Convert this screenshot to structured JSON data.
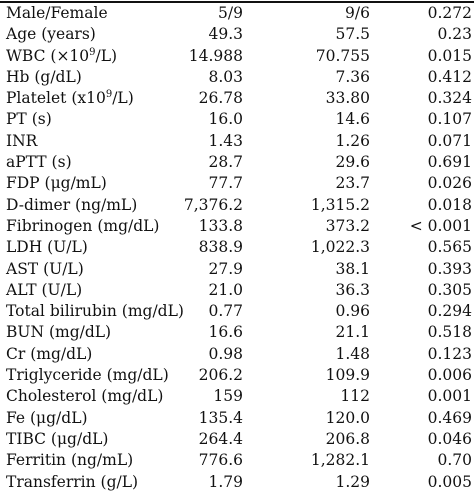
{
  "rows": [
    {
      "label": "Male/Female",
      "a": "5/9",
      "b": "9/6",
      "p": "0.272"
    },
    {
      "label": "Age (years)",
      "a": "49.3",
      "b": "57.5",
      "p": "0.23"
    },
    {
      "label_pre": "WBC (×10",
      "label_sup": "9",
      "label_post": "/L)",
      "a": "14.988",
      "b": "70.755",
      "p": "0.015"
    },
    {
      "label": "Hb (g/dL)",
      "a": "8.03",
      "b": "7.36",
      "p": "0.412"
    },
    {
      "label_pre": "Platelet (x10",
      "label_sup": "9",
      "label_post": "/L)",
      "a": "26.78",
      "b": "33.80",
      "p": "0.324"
    },
    {
      "label": "PT (s)",
      "a": "16.0",
      "b": "14.6",
      "p": "0.107"
    },
    {
      "label": "INR",
      "a": "1.43",
      "b": "1.26",
      "p": "0.071"
    },
    {
      "label": "aPTT (s)",
      "a": "28.7",
      "b": "29.6",
      "p": "0.691"
    },
    {
      "label": "FDP (μg/mL)",
      "a": "77.7",
      "b": "23.7",
      "p": "0.026"
    },
    {
      "label": "D-dimer (ng/mL)",
      "a": "7,376.2",
      "b": "1,315.2",
      "p": "0.018"
    },
    {
      "label": "Fibrinogen (mg/dL)",
      "a": "133.8",
      "b": "373.2",
      "p": "< 0.001"
    },
    {
      "label": "LDH (U/L)",
      "a": "838.9",
      "b": "1,022.3",
      "p": "0.565"
    },
    {
      "label": "AST (U/L)",
      "a": "27.9",
      "b": "38.1",
      "p": "0.393"
    },
    {
      "label": "ALT (U/L)",
      "a": "21.0",
      "b": "36.3",
      "p": "0.305"
    },
    {
      "label": "Total bilirubin (mg/dL)",
      "a": "0.77",
      "b": "0.96",
      "p": "0.294"
    },
    {
      "label": "BUN (mg/dL)",
      "a": "16.6",
      "b": "21.1",
      "p": "0.518"
    },
    {
      "label": "Cr (mg/dL)",
      "a": "0.98",
      "b": "1.48",
      "p": "0.123"
    },
    {
      "label": "Triglyceride (mg/dL)",
      "a": "206.2",
      "b": "109.9",
      "p": "0.006"
    },
    {
      "label": "Cholesterol (mg/dL)",
      "a": "159",
      "b": "112",
      "p": "0.001"
    },
    {
      "label": "Fe (μg/dL)",
      "a": "135.4",
      "b": "120.0",
      "p": "0.469"
    },
    {
      "label": "TIBC (μg/dL)",
      "a": "264.4",
      "b": "206.8",
      "p": "0.046"
    },
    {
      "label": "Ferritin (ng/mL)",
      "a": "776.6",
      "b": "1,282.1",
      "p": "0.70"
    },
    {
      "label": "Transferrin (g/L)",
      "a": "1.79",
      "b": "1.29",
      "p": "0.005"
    }
  ]
}
